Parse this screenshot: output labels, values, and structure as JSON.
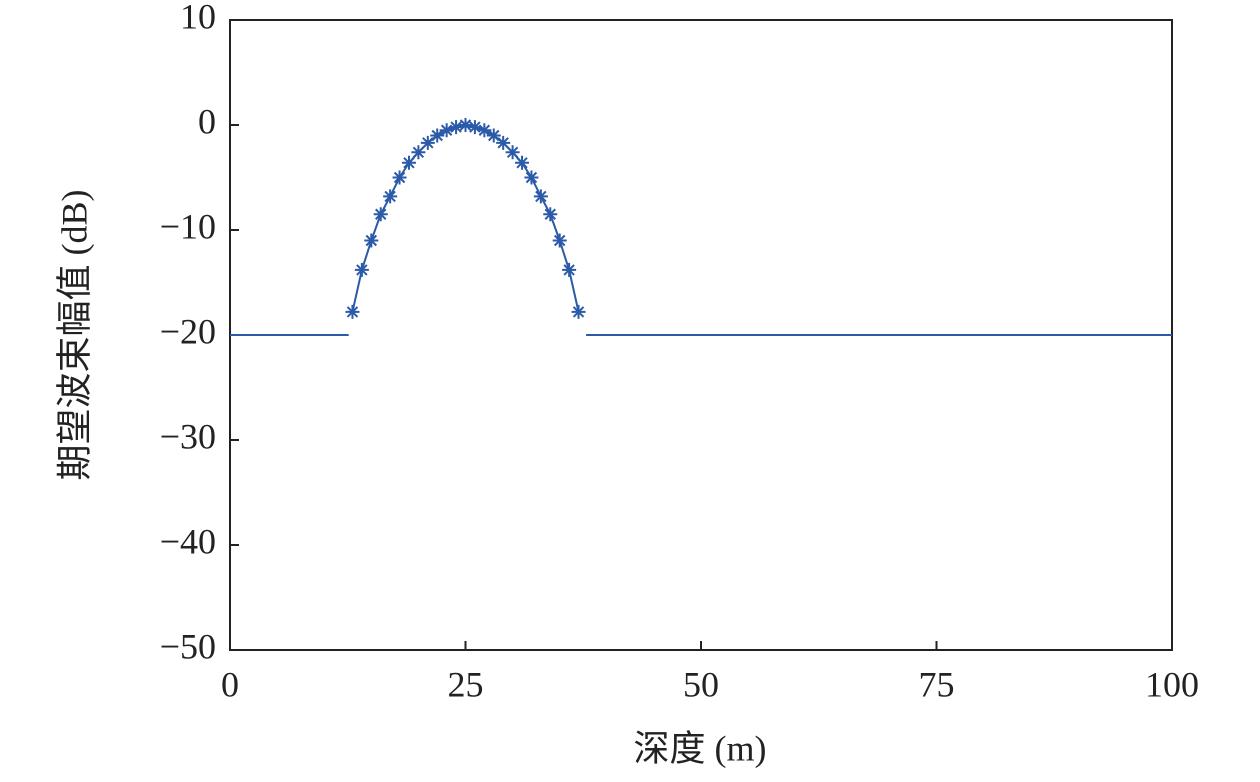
{
  "chart_data": {
    "type": "line",
    "x_label": "深度 (m)",
    "y_label": "期望波束幅值 (dB)",
    "xlim": [
      0,
      100
    ],
    "xticks": [
      0,
      25,
      50,
      75,
      100
    ],
    "ylim": [
      -50,
      10
    ],
    "yticks": [
      {
        "value": -50,
        "label": "−50"
      },
      {
        "value": -40,
        "label": "−40"
      },
      {
        "value": -30,
        "label": "−30"
      },
      {
        "value": -20,
        "label": "−20"
      },
      {
        "value": -10,
        "label": "−10"
      },
      0,
      10
    ],
    "grid": false,
    "series": [
      {
        "color": "#2b5aa8",
        "marker": "asterisk",
        "x": [
          13,
          14,
          15,
          16,
          17,
          18,
          19,
          20,
          21,
          22,
          23,
          24,
          25,
          26,
          27,
          28,
          29,
          30,
          31,
          32,
          33,
          34,
          35,
          36,
          37
        ],
        "values": [
          -17.8,
          -13.8,
          -11.0,
          -8.5,
          -6.8,
          -5.0,
          -3.6,
          -2.6,
          -1.7,
          -1.0,
          -0.5,
          -0.2,
          0,
          -0.2,
          -0.5,
          -1.0,
          -1.7,
          -2.6,
          -3.6,
          -5.0,
          -6.8,
          -8.5,
          -11.0,
          -13.8,
          -17.8
        ]
      },
      {
        "color": "#2b5aa8",
        "marker": "none",
        "x": [
          0,
          12.6,
          25,
          37.8,
          100
        ],
        "values": [
          -20,
          -20,
          null,
          -20,
          -20
        ]
      }
    ]
  }
}
